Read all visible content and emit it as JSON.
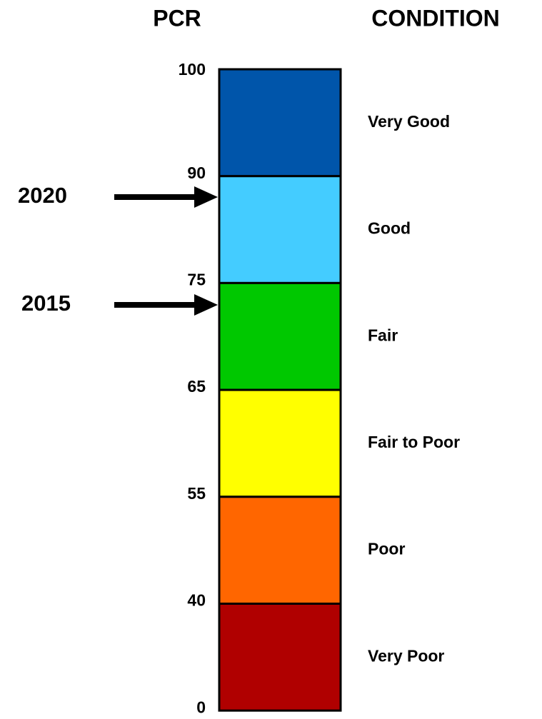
{
  "headers": {
    "left": "PCR",
    "right": "CONDITION"
  },
  "ticks": [
    100,
    90,
    75,
    65,
    55,
    40,
    0
  ],
  "bands": [
    {
      "label": "Very Good",
      "color": "#0055aa"
    },
    {
      "label": "Good",
      "color": "#44ccff"
    },
    {
      "label": "Fair",
      "color": "#00c800"
    },
    {
      "label": "Fair to Poor",
      "color": "#ffff00"
    },
    {
      "label": "Poor",
      "color": "#ff6600"
    },
    {
      "label": "Very Poor",
      "color": "#b00000"
    }
  ],
  "markers": [
    {
      "label": "2020"
    },
    {
      "label": "2015"
    }
  ]
}
